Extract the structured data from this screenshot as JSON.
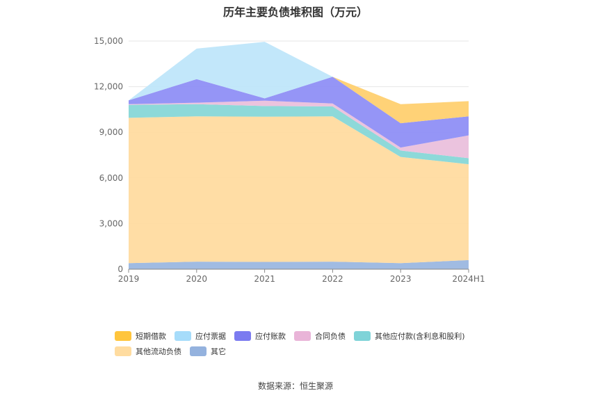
{
  "chart_data": {
    "type": "area",
    "stacked": true,
    "title": "历年主要负债堆积图（万元）",
    "categories": [
      "2019",
      "2020",
      "2021",
      "2022",
      "2023",
      "2024H1"
    ],
    "ylim": [
      0,
      15000
    ],
    "yticks": [
      0,
      3000,
      6000,
      9000,
      12000,
      15000
    ],
    "ytick_labels": [
      "0",
      "3,000",
      "6,000",
      "9,000",
      "12,000",
      "15,000"
    ],
    "grid": true,
    "legend_position": "bottom",
    "series": [
      {
        "name": "其它",
        "color": "#9bb7e0",
        "values": [
          400,
          500,
          480,
          500,
          400,
          600
        ]
      },
      {
        "name": "其他流动负债",
        "color": "#ffdba0",
        "values": [
          9550,
          9550,
          9550,
          9550,
          6980,
          6300
        ]
      },
      {
        "name": "其他应付款(含利息和股利)",
        "color": "#87d7d7",
        "values": [
          850,
          800,
          700,
          650,
          420,
          400
        ]
      },
      {
        "name": "合同负债",
        "color": "#eac0dc",
        "values": [
          50,
          100,
          350,
          200,
          200,
          1500
        ]
      },
      {
        "name": "应付账款",
        "color": "#8f8ff5",
        "values": [
          250,
          1550,
          150,
          1750,
          1600,
          1250
        ]
      },
      {
        "name": "应付票据",
        "color": "#bfe6fa",
        "values": [
          0,
          2000,
          3720,
          0,
          0,
          0
        ]
      },
      {
        "name": "短期借款",
        "color": "#ffd070",
        "values": [
          0,
          0,
          0,
          0,
          1250,
          1000
        ]
      }
    ]
  },
  "legend_rows": [
    [
      {
        "label": "短期借款",
        "color": "#ffc53d"
      },
      {
        "label": "应付票据",
        "color": "#a6dcfa"
      },
      {
        "label": "应付账款",
        "color": "#7b7bf0"
      },
      {
        "label": "合同负债",
        "color": "#e9b4d8"
      },
      {
        "label": "其他应付款(含利息和股利)",
        "color": "#7fd3d8"
      }
    ],
    [
      {
        "label": "其他流动负债",
        "color": "#ffdca0"
      },
      {
        "label": "其它",
        "color": "#94b2de"
      }
    ]
  ],
  "source": "数据来源：恒生聚源"
}
